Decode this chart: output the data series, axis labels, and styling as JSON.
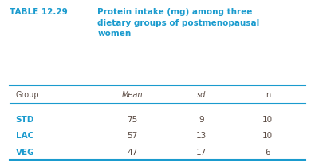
{
  "table_label": "TABLE 12.29",
  "title_lines": [
    "Protein intake (mg) among three",
    "dietary groups of postmenopausal",
    "women"
  ],
  "col_headers": [
    "Group",
    "Mean",
    "sd",
    "n"
  ],
  "rows": [
    [
      "STD",
      "75",
      "9",
      "10"
    ],
    [
      "LAC",
      "57",
      "13",
      "10"
    ],
    [
      "VEG",
      "47",
      "17",
      "6"
    ]
  ],
  "body_text_color": "#5a4a42",
  "group_text_color": "#1a9bce",
  "background_color": "#ffffff",
  "line_color": "#1a9bce",
  "table_label_color": "#1a9bce",
  "title_color": "#1a9bce",
  "col_header_color": "#5a4a42",
  "italic_cols": [
    1,
    2
  ],
  "figsize": [
    3.95,
    2.05
  ],
  "dpi": 100
}
